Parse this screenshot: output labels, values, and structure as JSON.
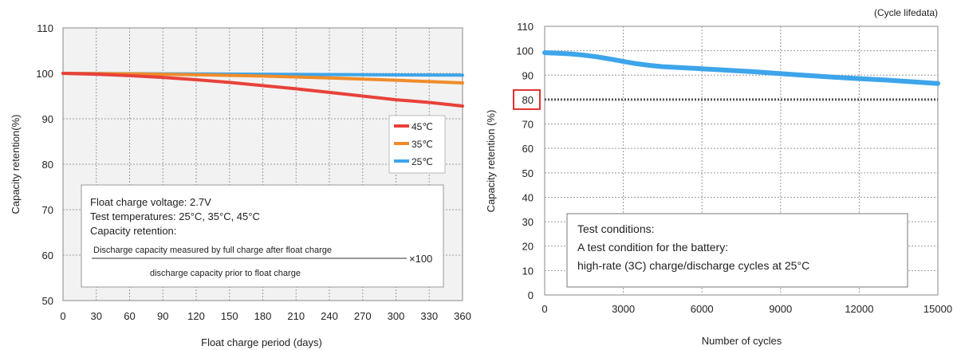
{
  "chart_data": [
    {
      "type": "line",
      "xlabel": "Float charge period (days)",
      "ylabel": "Capacity retention(%)",
      "xlim": [
        0,
        360
      ],
      "ylim": [
        50,
        110
      ],
      "xticks": [
        0,
        30,
        60,
        90,
        120,
        150,
        180,
        210,
        240,
        270,
        300,
        330,
        360
      ],
      "yticks": [
        50,
        60,
        70,
        80,
        90,
        100,
        110
      ],
      "grid": true,
      "background": "#f2f2f2",
      "legend_position": "right",
      "series": [
        {
          "name": "45℃",
          "color": "#e8413a",
          "x": [
            0,
            30,
            60,
            90,
            120,
            150,
            180,
            210,
            240,
            270,
            300,
            330,
            360
          ],
          "y": [
            100,
            99.8,
            99.5,
            99.1,
            98.6,
            98.0,
            97.3,
            96.6,
            95.8,
            95.0,
            94.2,
            93.6,
            92.8
          ]
        },
        {
          "name": "35℃",
          "color": "#f08c2a",
          "x": [
            0,
            60,
            120,
            180,
            240,
            300,
            360
          ],
          "y": [
            100,
            99.9,
            99.7,
            99.4,
            99.0,
            98.5,
            97.9
          ]
        },
        {
          "name": "25℃",
          "color": "#3da5ea",
          "x": [
            0,
            90,
            180,
            270,
            360
          ],
          "y": [
            100,
            99.9,
            99.8,
            99.7,
            99.6
          ]
        }
      ],
      "annotation": {
        "line1": "Float charge voltage: 2.7V",
        "line2": "Test temperatures: 25°C, 35°C, 45°C",
        "line3": "Capacity retention:",
        "numerator": "Discharge capacity measured by full charge after float charge",
        "denominator": "discharge capacity prior to float charge",
        "multiplier": "×100"
      }
    },
    {
      "type": "line",
      "title": "(Cycle lifedata)",
      "xlabel": "Number of cycles",
      "ylabel": "Capacity retention (%)",
      "xlim": [
        0,
        15000
      ],
      "ylim": [
        0,
        110
      ],
      "xticks": [
        0,
        3000,
        6000,
        9000,
        12000,
        15000
      ],
      "yticks": [
        0,
        10,
        20,
        30,
        40,
        50,
        60,
        70,
        80,
        90,
        100,
        110
      ],
      "grid": true,
      "background": "#ffffff",
      "highlight_tick": 80,
      "highlight_color": "#e03030",
      "series": [
        {
          "color": "#3da5ea",
          "x": [
            0,
            500,
            1000,
            1500,
            2000,
            2500,
            3000,
            3500,
            4000,
            4500,
            5000,
            6000,
            7000,
            8000,
            9000,
            10000,
            11000,
            12000,
            13000,
            14000,
            15000
          ],
          "y": [
            99.2,
            99.0,
            98.7,
            98.2,
            97.5,
            96.6,
            95.6,
            94.7,
            94.0,
            93.5,
            93.2,
            92.6,
            92.0,
            91.4,
            90.6,
            89.9,
            89.2,
            88.6,
            88.0,
            87.3,
            86.6
          ]
        }
      ],
      "reference_line": {
        "y": 80,
        "color": "#555555",
        "style": "dotted"
      },
      "annotation": {
        "line1": "Test conditions:",
        "line2": "A test condition for the battery:",
        "line3": "high-rate (3C) charge/discharge cycles at 25°C"
      }
    }
  ]
}
